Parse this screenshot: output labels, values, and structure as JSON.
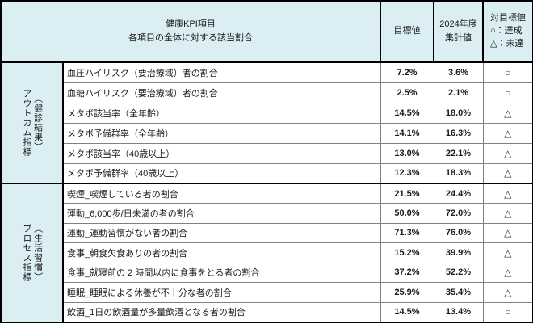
{
  "header": {
    "kpi_line1": "健康KPI項目",
    "kpi_line2": "各項目の全体に対する該当割合",
    "target": "目標値",
    "result_line1": "2024年度",
    "result_line2": "集計値",
    "vs_line1": "対目標値",
    "vs_line2": "○：達成",
    "vs_line3": "△：未達"
  },
  "sections": [
    {
      "group_main": "アウトカム指標",
      "group_sub": "（健診結果）",
      "rows": [
        {
          "label": "血圧ハイリスク（要治療域）者の割合",
          "target": "7.2%",
          "result": "3.6%",
          "status": "○"
        },
        {
          "label": "血糖ハイリスク（要治療域）者の割合",
          "target": "2.5%",
          "result": "2.1%",
          "status": "○"
        },
        {
          "label": "メタボ該当率（全年齢）",
          "target": "14.5%",
          "result": "18.0%",
          "status": "△"
        },
        {
          "label": "メタボ予備群率（全年齢）",
          "target": "14.1%",
          "result": "16.3%",
          "status": "△"
        },
        {
          "label": "メタボ該当率（40歳以上）",
          "target": "13.0%",
          "result": "22.1%",
          "status": "△"
        },
        {
          "label": "メタボ予備群率（40歳以上）",
          "target": "12.3%",
          "result": "18.3%",
          "status": "△"
        }
      ]
    },
    {
      "group_main": "プロセス指標",
      "group_sub": "（生活習慣）",
      "rows": [
        {
          "label": "喫煙_喫煙している者の割合",
          "target": "21.5%",
          "result": "24.4%",
          "status": "△"
        },
        {
          "label": "運動_6,000歩/日未満の者の割合",
          "target": "50.0%",
          "result": "72.0%",
          "status": "△"
        },
        {
          "label": "運動_運動習慣がない者の割合",
          "target": "71.3%",
          "result": "76.0%",
          "status": "△"
        },
        {
          "label": "食事_朝食欠食ありの者の割合",
          "target": "15.2%",
          "result": "39.9%",
          "status": "△"
        },
        {
          "label": "食事_就寝前の 2 時間以内に食事をとる者の割合",
          "target": "37.2%",
          "result": "52.2%",
          "status": "△"
        },
        {
          "label": "睡眠_睡眠による休養が不十分な者の割合",
          "target": "25.9%",
          "result": "35.4%",
          "status": "△"
        },
        {
          "label": "飲酒_1日の飲酒量が多量飲酒となる者の割合",
          "target": "14.5%",
          "result": "13.4%",
          "status": "○"
        }
      ]
    }
  ],
  "colors": {
    "header_bg": "#daeef3",
    "group_bg": "#daeef3",
    "body_bg": "#ffffff",
    "grid_line": "#808080",
    "strong_line": "#000000",
    "text": "#1a1a1a"
  }
}
